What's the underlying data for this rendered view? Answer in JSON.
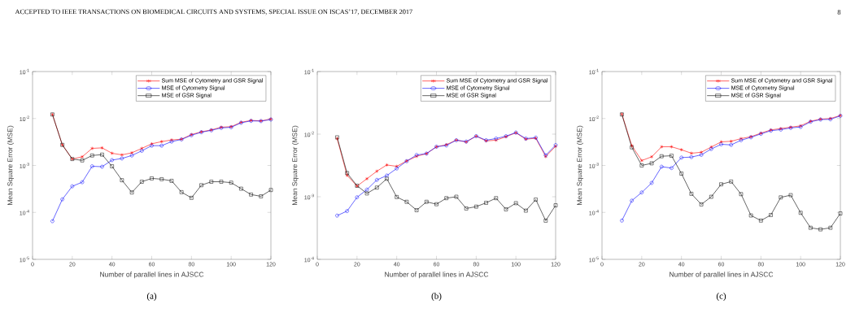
{
  "chart_data": [
    {
      "type": "line",
      "log": "y",
      "legend": "top right",
      "xlabel": "Number of parallel lines in AJSCC",
      "ylabel": "Mean Square Error (MSE)",
      "annotations": [
        "(a)",
        "ACCEPTED TO IEEE TRANSACTIONS ON BIOMEDICAL CIRCUITS AND SYSTEMS, SPECIAL ISSUE ON ISCAS’17, DECEMBER 2017",
        "8"
      ],
      "xlim": [
        0,
        120
      ],
      "xticks": [
        0,
        20,
        40,
        60,
        80,
        100,
        120
      ],
      "ylim": [
        1e-05,
        0.1
      ],
      "yticks": [
        {
          "value": 1e-05,
          "label": "10$^{-5}$"
        },
        {
          "value": 0.0001,
          "label": "10$^{-4}$"
        },
        {
          "value": 0.001,
          "label": "10$^{-3}$"
        },
        {
          "value": 0.01,
          "label": "10$^{-2}$"
        },
        {
          "value": 0.1,
          "label": "10$^{-1}$"
        }
      ],
      "x": [
        10,
        15,
        20,
        25,
        30,
        35,
        40,
        45,
        50,
        55,
        60,
        65,
        70,
        75,
        80,
        85,
        90,
        95,
        100,
        105,
        110,
        115,
        120
      ],
      "series": [
        {
          "name": "Sum MSE of Cytometry and GSR Signal",
          "color": "#ff0000",
          "marker": "cross",
          "values": [
            0.0122,
            0.00274,
            0.00137,
            0.00153,
            0.00231,
            0.00237,
            0.00182,
            0.00168,
            0.00186,
            0.00231,
            0.00289,
            0.00322,
            0.00349,
            0.00363,
            0.00455,
            0.0052,
            0.00571,
            0.00653,
            0.0067,
            0.0083,
            0.0091,
            0.0089,
            0.0097
          ]
        },
        {
          "name": "MSE of Cytometry Signal",
          "color": "#0000ff",
          "marker": "circle",
          "values": [
            6.5e-05,
            0.00019,
            0.00036,
            0.00044,
            0.00096,
            0.00094,
            0.0013,
            0.00141,
            0.00163,
            0.00205,
            0.00264,
            0.00264,
            0.00322,
            0.00358,
            0.0044,
            0.0051,
            0.0056,
            0.0063,
            0.0065,
            0.0081,
            0.0089,
            0.0088,
            0.0095
          ]
        },
        {
          "name": "MSE of GSR Signal",
          "color": "#000000",
          "marker": "square",
          "values": [
            0.0122,
            0.00274,
            0.00137,
            0.00128,
            0.00163,
            0.0017,
            0.00096,
            0.000485,
            0.000266,
            0.00045,
            0.00053,
            0.00051,
            0.00047,
            0.00027,
            0.000204,
            0.00038,
            0.00045,
            0.00045,
            0.00043,
            0.00032,
            0.00024,
            0.00022,
            0.0003
          ]
        }
      ]
    },
    {
      "type": "line",
      "log": "y",
      "legend": "top right",
      "xlabel": "Number of parallel lines in AJSCC",
      "ylabel": "Mean Square Error (MSE)",
      "annotations": [
        "(b)"
      ],
      "xlim": [
        0,
        120
      ],
      "xticks": [
        0,
        20,
        40,
        60,
        80,
        100,
        120
      ],
      "ylim": [
        0.0001,
        0.1
      ],
      "yticks": [
        {
          "value": 0.0001,
          "label": "10$^{-4}$"
        },
        {
          "value": 0.001,
          "label": "10$^{-3}$"
        },
        {
          "value": 0.01,
          "label": "10$^{-2}$"
        },
        {
          "value": 0.1,
          "label": "10$^{-1}$"
        }
      ],
      "x": [
        10,
        15,
        20,
        25,
        30,
        35,
        40,
        45,
        50,
        55,
        60,
        65,
        70,
        75,
        80,
        85,
        90,
        95,
        100,
        105,
        110,
        115,
        120
      ],
      "series": [
        {
          "name": "Sum MSE of Cytometry and GSR Signal",
          "color": "#ff0000",
          "marker": "cross",
          "values": [
            0.0085,
            0.0022,
            0.00148,
            0.00194,
            0.00256,
            0.00322,
            0.00306,
            0.00373,
            0.00442,
            0.00489,
            0.00627,
            0.00679,
            0.00804,
            0.0075,
            0.0093,
            0.0078,
            0.008,
            0.0091,
            0.0105,
            0.0083,
            0.0086,
            0.00438,
            0.0064
          ]
        },
        {
          "name": "MSE of Cytometry Signal",
          "color": "#0000ff",
          "marker": "circle",
          "values": [
            0.0005,
            0.00059,
            0.00098,
            0.0013,
            0.00186,
            0.00218,
            0.00283,
            0.0037,
            0.00465,
            0.00489,
            0.0063,
            0.0066,
            0.008,
            0.0076,
            0.0093,
            0.008,
            0.0085,
            0.0093,
            0.0106,
            0.0085,
            0.0088,
            0.0046,
            0.0067
          ]
        },
        {
          "name": "MSE of GSR Signal",
          "color": "#000000",
          "marker": "square",
          "values": [
            0.0089,
            0.00239,
            0.0015,
            0.00113,
            0.0014,
            0.00194,
            0.00099,
            0.00083,
            0.00061,
            0.00083,
            0.00076,
            0.00095,
            0.001,
            0.00065,
            0.000695,
            0.0008,
            0.00095,
            0.00063,
            0.00079,
            0.0006,
            0.0009,
            0.000415,
            0.00073
          ]
        }
      ]
    },
    {
      "type": "line",
      "log": "y",
      "legend": "top right",
      "xlabel": "Number of parallel lines in AJSCC",
      "ylabel": "Mean Square Error (MSE)",
      "annotations": [
        "(c)"
      ],
      "xlim": [
        0,
        120
      ],
      "xticks": [
        0,
        20,
        40,
        60,
        80,
        100,
        120
      ],
      "ylim": [
        1e-05,
        0.1
      ],
      "yticks": [
        {
          "value": 1e-05,
          "label": "10$^{-5}$"
        },
        {
          "value": 0.0001,
          "label": "10$^{-4}$"
        },
        {
          "value": 0.001,
          "label": "10$^{-3}$"
        },
        {
          "value": 0.01,
          "label": "10$^{-2}$"
        },
        {
          "value": 0.1,
          "label": "10$^{-1}$"
        }
      ],
      "x": [
        10,
        15,
        20,
        25,
        30,
        35,
        40,
        45,
        50,
        55,
        60,
        65,
        70,
        75,
        80,
        85,
        90,
        95,
        100,
        105,
        110,
        115,
        120
      ],
      "series": [
        {
          "name": "Sum MSE of Cytometry and GSR Signal",
          "color": "#ff0000",
          "marker": "cross",
          "values": [
            0.0124,
            0.00264,
            0.00127,
            0.00153,
            0.0025,
            0.0025,
            0.00216,
            0.00182,
            0.00191,
            0.00247,
            0.00318,
            0.00327,
            0.00373,
            0.0041,
            0.00487,
            0.00571,
            0.0061,
            0.00653,
            0.00698,
            0.00875,
            0.0097,
            0.01,
            0.0116
          ]
        },
        {
          "name": "MSE of Cytometry Signal",
          "color": "#0000ff",
          "marker": "circle",
          "values": [
            6.7e-05,
            0.000178,
            0.000266,
            0.000425,
            0.00094,
            0.00088,
            0.00147,
            0.00151,
            0.00168,
            0.00224,
            0.00282,
            0.00274,
            0.00344,
            0.00398,
            0.0047,
            0.0055,
            0.0058,
            0.0063,
            0.0066,
            0.0085,
            0.0095,
            0.0096,
            0.0114
          ]
        },
        {
          "name": "MSE of GSR Signal",
          "color": "#000000",
          "marker": "square",
          "values": [
            0.0122,
            0.00243,
            0.001,
            0.00111,
            0.00157,
            0.00161,
            0.00067,
            0.000249,
            0.000148,
            0.000215,
            0.000397,
            0.000454,
            0.000245,
            8.6e-05,
            6.7e-05,
            8.8e-05,
            0.000209,
            0.000233,
            9.8e-05,
            4.7e-05,
            4.35e-05,
            4.7e-05,
            9.5e-05
          ]
        }
      ]
    }
  ]
}
